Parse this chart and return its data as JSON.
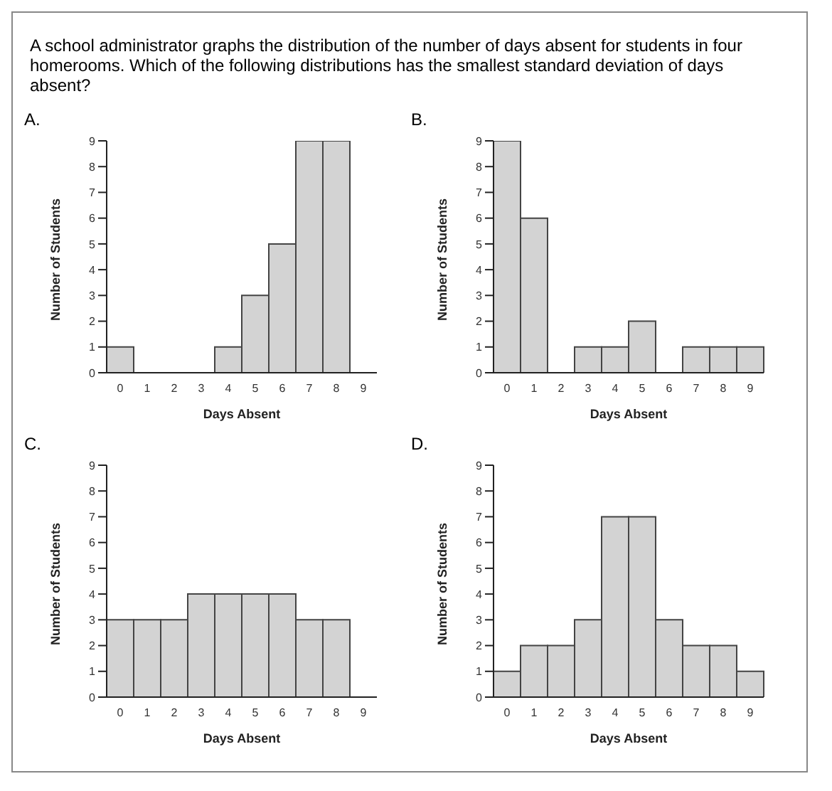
{
  "chart_data": [
    {
      "type": "bar",
      "title": "A.",
      "annotations": [
        "A school administrator graphs the distribution of the number of days absent for students in four homerooms.  Which of the following distributions has the smallest standard deviation of days absent?"
      ],
      "xlabel": "Days Absent",
      "ylabel": "Number of Students",
      "categories": [
        "0",
        "1",
        "2",
        "3",
        "4",
        "5",
        "6",
        "7",
        "8",
        "9"
      ],
      "values": [
        1,
        0,
        0,
        0,
        1,
        3,
        5,
        9,
        9,
        0
      ],
      "color": "#d3d3d3",
      "ylim": [
        0,
        9
      ],
      "yticks": [
        0,
        1,
        2,
        3,
        4,
        5,
        6,
        7,
        8,
        9
      ],
      "grid": false
    },
    {
      "type": "bar",
      "title": "B.",
      "xlabel": "Days Absent",
      "ylabel": "Number of Students",
      "categories": [
        "0",
        "1",
        "2",
        "3",
        "4",
        "5",
        "6",
        "7",
        "8",
        "9"
      ],
      "values": [
        9,
        6,
        0,
        1,
        1,
        2,
        0,
        1,
        1,
        1
      ],
      "color": "#d3d3d3",
      "ylim": [
        0,
        9
      ],
      "yticks": [
        0,
        1,
        2,
        3,
        4,
        5,
        6,
        7,
        8,
        9
      ],
      "grid": false
    },
    {
      "type": "bar",
      "title": "C.",
      "xlabel": "Days Absent",
      "ylabel": "Number of Students",
      "categories": [
        "0",
        "1",
        "2",
        "3",
        "4",
        "5",
        "6",
        "7",
        "8",
        "9"
      ],
      "values": [
        3,
        3,
        3,
        4,
        4,
        4,
        4,
        3,
        3,
        0
      ],
      "color": "#d3d3d3",
      "ylim": [
        0,
        9
      ],
      "yticks": [
        0,
        1,
        2,
        3,
        4,
        5,
        6,
        7,
        8,
        9
      ],
      "grid": false
    },
    {
      "type": "bar",
      "title": "D.",
      "xlabel": "Days Absent",
      "ylabel": "Number of Students",
      "categories": [
        "0",
        "1",
        "2",
        "3",
        "4",
        "5",
        "6",
        "7",
        "8",
        "9"
      ],
      "values": [
        1,
        2,
        2,
        3,
        7,
        7,
        3,
        2,
        2,
        1
      ],
      "color": "#d3d3d3",
      "ylim": [
        0,
        9
      ],
      "yticks": [
        0,
        1,
        2,
        3,
        4,
        5,
        6,
        7,
        8,
        9
      ],
      "grid": false
    }
  ]
}
